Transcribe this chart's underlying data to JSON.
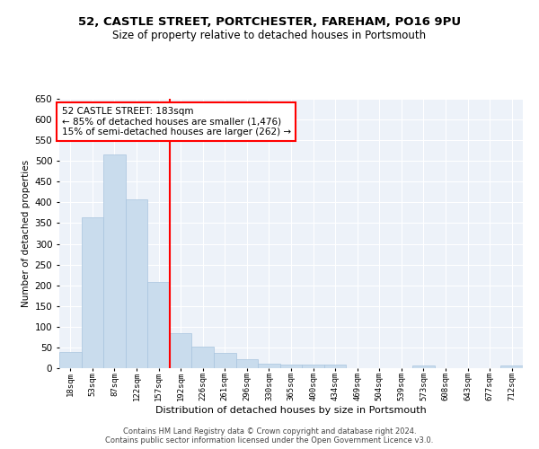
{
  "title_line1": "52, CASTLE STREET, PORTCHESTER, FAREHAM, PO16 9PU",
  "title_line2": "Size of property relative to detached houses in Portsmouth",
  "xlabel": "Distribution of detached houses by size in Portsmouth",
  "ylabel": "Number of detached properties",
  "footnote1": "Contains HM Land Registry data © Crown copyright and database right 2024.",
  "footnote2": "Contains public sector information licensed under the Open Government Licence v3.0.",
  "annotation_title": "52 CASTLE STREET: 183sqm",
  "annotation_line1": "← 85% of detached houses are smaller (1,476)",
  "annotation_line2": "15% of semi-detached houses are larger (262) →",
  "bar_color": "#c9dced",
  "bar_edge_color": "#a8c4de",
  "vline_color": "red",
  "vline_x_index": 4.5,
  "categories": [
    "18sqm",
    "53sqm",
    "87sqm",
    "122sqm",
    "157sqm",
    "192sqm",
    "226sqm",
    "261sqm",
    "296sqm",
    "330sqm",
    "365sqm",
    "400sqm",
    "434sqm",
    "469sqm",
    "504sqm",
    "539sqm",
    "573sqm",
    "608sqm",
    "643sqm",
    "677sqm",
    "712sqm"
  ],
  "values": [
    38,
    365,
    515,
    408,
    207,
    84,
    53,
    36,
    22,
    11,
    8,
    8,
    9,
    1,
    1,
    1,
    6,
    1,
    1,
    1,
    6
  ],
  "ylim": [
    0,
    650
  ],
  "yticks": [
    0,
    50,
    100,
    150,
    200,
    250,
    300,
    350,
    400,
    450,
    500,
    550,
    600,
    650
  ],
  "plot_bg_color": "#edf2f9",
  "grid_color": "#ffffff",
  "title_fontsize": 9.5,
  "subtitle_fontsize": 8.5,
  "xlabel_fontsize": 8,
  "ylabel_fontsize": 7.5,
  "xtick_fontsize": 6.5,
  "ytick_fontsize": 7.5,
  "footnote_fontsize": 6,
  "annotation_fontsize": 7.5
}
